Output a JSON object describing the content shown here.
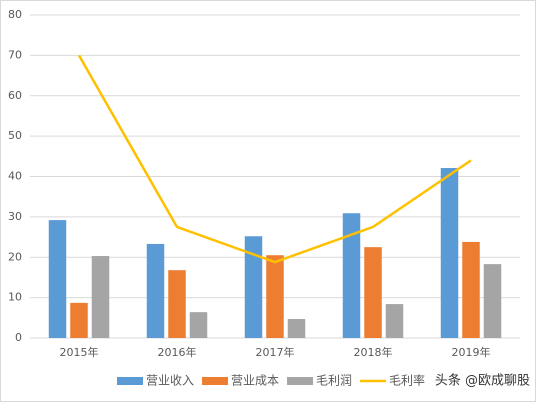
{
  "chart_data": {
    "type": "bar",
    "categories": [
      "2015年",
      "2016年",
      "2017年",
      "2018年",
      "2019年"
    ],
    "series": [
      {
        "name": "营业收入",
        "color": "#5b9bd5",
        "type": "bar",
        "values": [
          29.2,
          23.3,
          25.2,
          30.9,
          42.1
        ]
      },
      {
        "name": "营业成本",
        "color": "#ed7d31",
        "type": "bar",
        "values": [
          8.7,
          16.8,
          20.5,
          22.5,
          23.8
        ]
      },
      {
        "name": "毛利润",
        "color": "#a5a5a5",
        "type": "bar",
        "values": [
          20.3,
          6.4,
          4.7,
          8.4,
          18.3
        ]
      },
      {
        "name": "毛利率",
        "color": "#ffc000",
        "type": "line",
        "values": [
          70,
          27.5,
          18.8,
          27.5,
          44
        ]
      }
    ],
    "ylim": [
      0,
      80
    ],
    "yticks": [
      0,
      10,
      20,
      30,
      40,
      50,
      60,
      70,
      80
    ],
    "grid": true,
    "legend": "bottom",
    "watermark": "头条 @欧成聊股"
  }
}
